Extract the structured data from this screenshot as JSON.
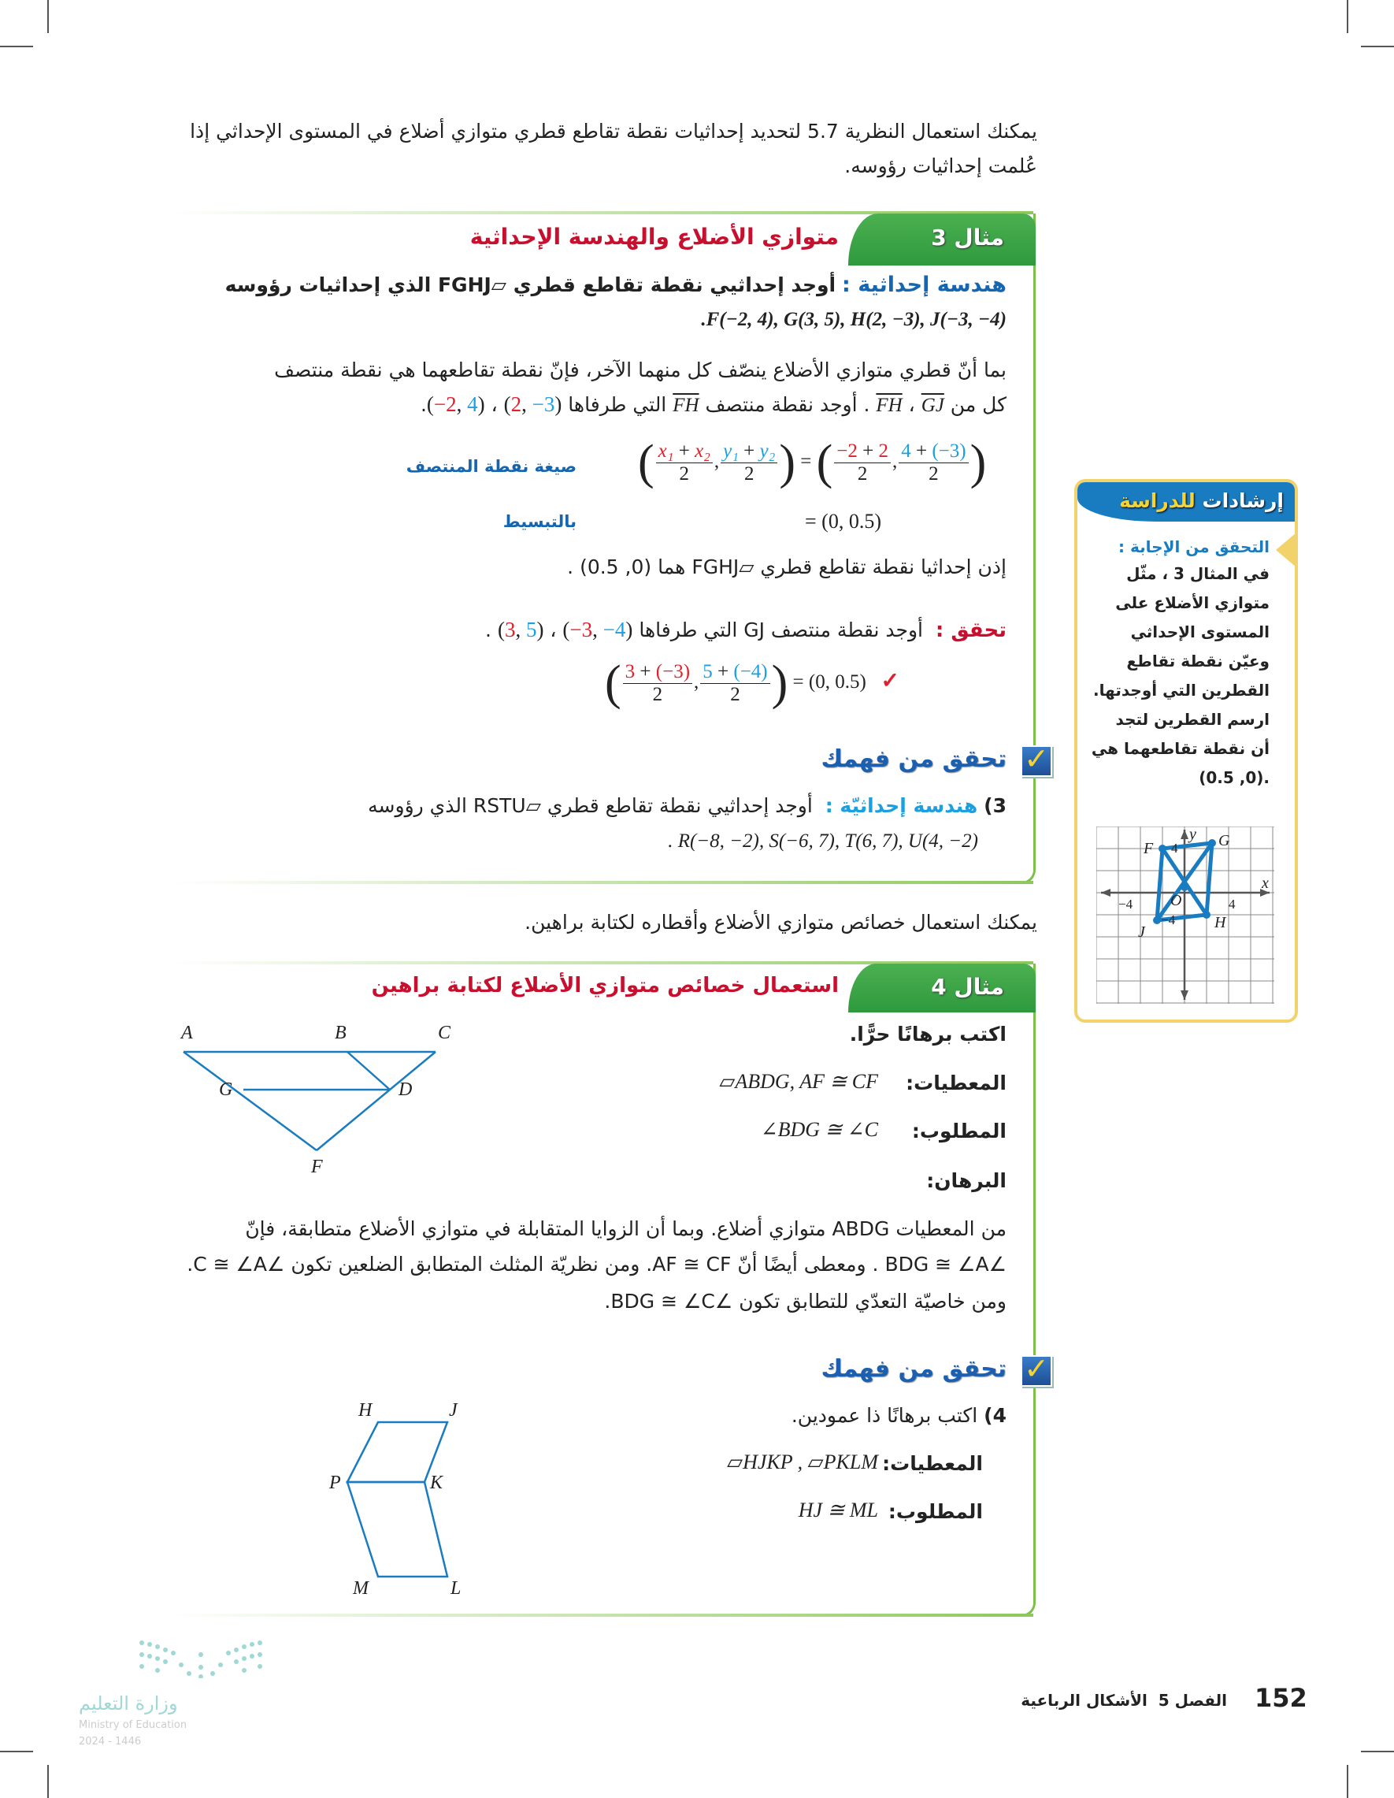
{
  "intro": {
    "line1": "يمكنك استعمال النظرية 5.7 لتحديد إحداثيات نقطة تقاطع قطري متوازي أضلاع في المستوى الإحداثي إذا",
    "line2": "عُلمت إحداثيات رؤوسه."
  },
  "example3": {
    "tab": "مثال 3",
    "title": "متوازي الأضلاع والهندسة الإحداثية",
    "label": "هندسة إحداثية :",
    "prompt": "أوجد إحداثيي نقطة تقاطع قطري ▱FGHJ الذي إحداثيات رؤوسه",
    "vertices": ".F(−2, 4), G(3, 5), H(2, −3), J(−3, −4)",
    "para1": "بما أنّ قطري متوازي الأضلاع ينصّف كل منهما الآخر، فإنّ نقطة تقاطعهما هي نقطة منتصف",
    "para2_a": "كل من ",
    "seg_gj": "GJ",
    "seg_fh": "FH",
    "para2_b": " . أوجد نقطة منتصف ",
    "para2_c": " التي طرفاها ",
    "pt1": {
      "x": "2",
      "y": "−3"
    },
    "pt2": {
      "x": "−2",
      "y": "4"
    },
    "formula_label": "صيغة نقطة المنتصف",
    "formula": {
      "x1": "x₁",
      "x2": "x₂",
      "y1": "y₁",
      "y2": "y₂",
      "den": "2",
      "a": "−2",
      "b": "2",
      "c": "4",
      "d": "(−3)"
    },
    "simplify_label": "بالتبسيط",
    "simplify_result": "= (0, 0.5)",
    "conclusion": "إذن إحداثيا نقطة تقاطع قطري ▱FGHJ هما (0, 0.5) .",
    "check_label": "تحقق :",
    "check_text": "أوجد نقطة منتصف GJ التي طرفاها",
    "check_pt1": {
      "x": "−3",
      "y": "−4"
    },
    "check_pt2": {
      "x": "3",
      "y": "5"
    },
    "check_formula": {
      "a": "3",
      "b": "(−3)",
      "c": "5",
      "d": "(−4)",
      "den": "2",
      "result": "= (0, 0.5)",
      "mark": "✓"
    }
  },
  "check_understanding": {
    "title": "تحقق من فهمك",
    "q3_num": "3)",
    "q3_label": "هندسة إحداثيّة :",
    "q3_text": "أوجد إحداثيي نقطة تقاطع قطري ▱RSTU الذي رؤوسه",
    "q3_vertices": ". R(−8, −2), S(−6, 7), T(6, 7), U(4, −2)"
  },
  "sidebar": {
    "title_a": "إرشادات",
    "title_b": "للدراسة",
    "heading": "التحقق من الإجابة :",
    "lines": [
      "في المثال 3 ، مثّل",
      "متوازي الأضلاع على",
      "المستوى الإحداثي",
      "وعيّن نقطة تقاطع",
      "القطرين التي أوجدتها.",
      "ارسم القطرين لتجد",
      "أن نقطة تقاطعهما هي",
      ".(0, 0.5)"
    ],
    "graph": {
      "labels": {
        "F": "F",
        "G": "G",
        "H": "H",
        "J": "J",
        "O": "O",
        "x": "x",
        "y": "y"
      },
      "ticks": {
        "pos4x": "4",
        "neg4x": "−4",
        "pos4y": "4",
        "neg4y": "−4"
      },
      "color": "#1a7cc0"
    }
  },
  "intro2": "يمكنك استعمال خصائص متوازي الأضلاع وأقطاره لكتابة براهين.",
  "example4": {
    "tab": "مثال 4",
    "title": "استعمال خصائص متوازي الأضلاع لكتابة براهين",
    "instruction": "اكتب برهانًا حرًّا.",
    "given_label": "المعطيات:",
    "given": "▱ABDG, AF ≅ CF",
    "prove_label": "المطلوب:",
    "prove": "∠BDG ≅ ∠C",
    "proof_label": "البرهان:",
    "proof": [
      "من المعطيات ABDG متوازي أضلاع. وبما أن الزوايا المتقابلة في متوازي الأضلاع متطابقة، فإنّ",
      "∠BDG ≅ ∠A . ومعطى أيضًا أنّ AF ≅ CF. ومن نظريّة المثلث المتطابق الضلعين تكون ∠C ≅ ∠A.",
      "ومن خاصيّة التعدّي للتطابق تكون ∠BDG ≅ ∠C."
    ],
    "diagram": {
      "A": "A",
      "B": "B",
      "C": "C",
      "D": "D",
      "G": "G",
      "F": "F"
    }
  },
  "check_understanding2": {
    "title": "تحقق من فهمك",
    "q4_num": "4)",
    "q4_text": "اكتب برهانًا ذا عمودين.",
    "given_label": "المعطيات:",
    "given": "▱HJKP , ▱PKLM",
    "prove_label": "المطلوب:",
    "prove": "HJ ≅ ML",
    "diagram": {
      "H": "H",
      "J": "J",
      "P": "P",
      "K": "K",
      "M": "M",
      "L": "L"
    }
  },
  "footer": {
    "page": "152",
    "chapter": "الفصل 5",
    "chapter_title": "الأشكال الرباعية",
    "ministry_ar": "وزارة التعليم",
    "ministry_en": "Ministry of Education",
    "year": "2024 - 1446"
  },
  "colors": {
    "green": "#3aa648",
    "title_red": "#c8102e",
    "label_blue": "#1565b0",
    "accent_red": "#e0202a",
    "accent_blue": "#1aa0e0",
    "diagram_blue": "#1a7cc0",
    "sidebar_border": "#f2d36b"
  }
}
